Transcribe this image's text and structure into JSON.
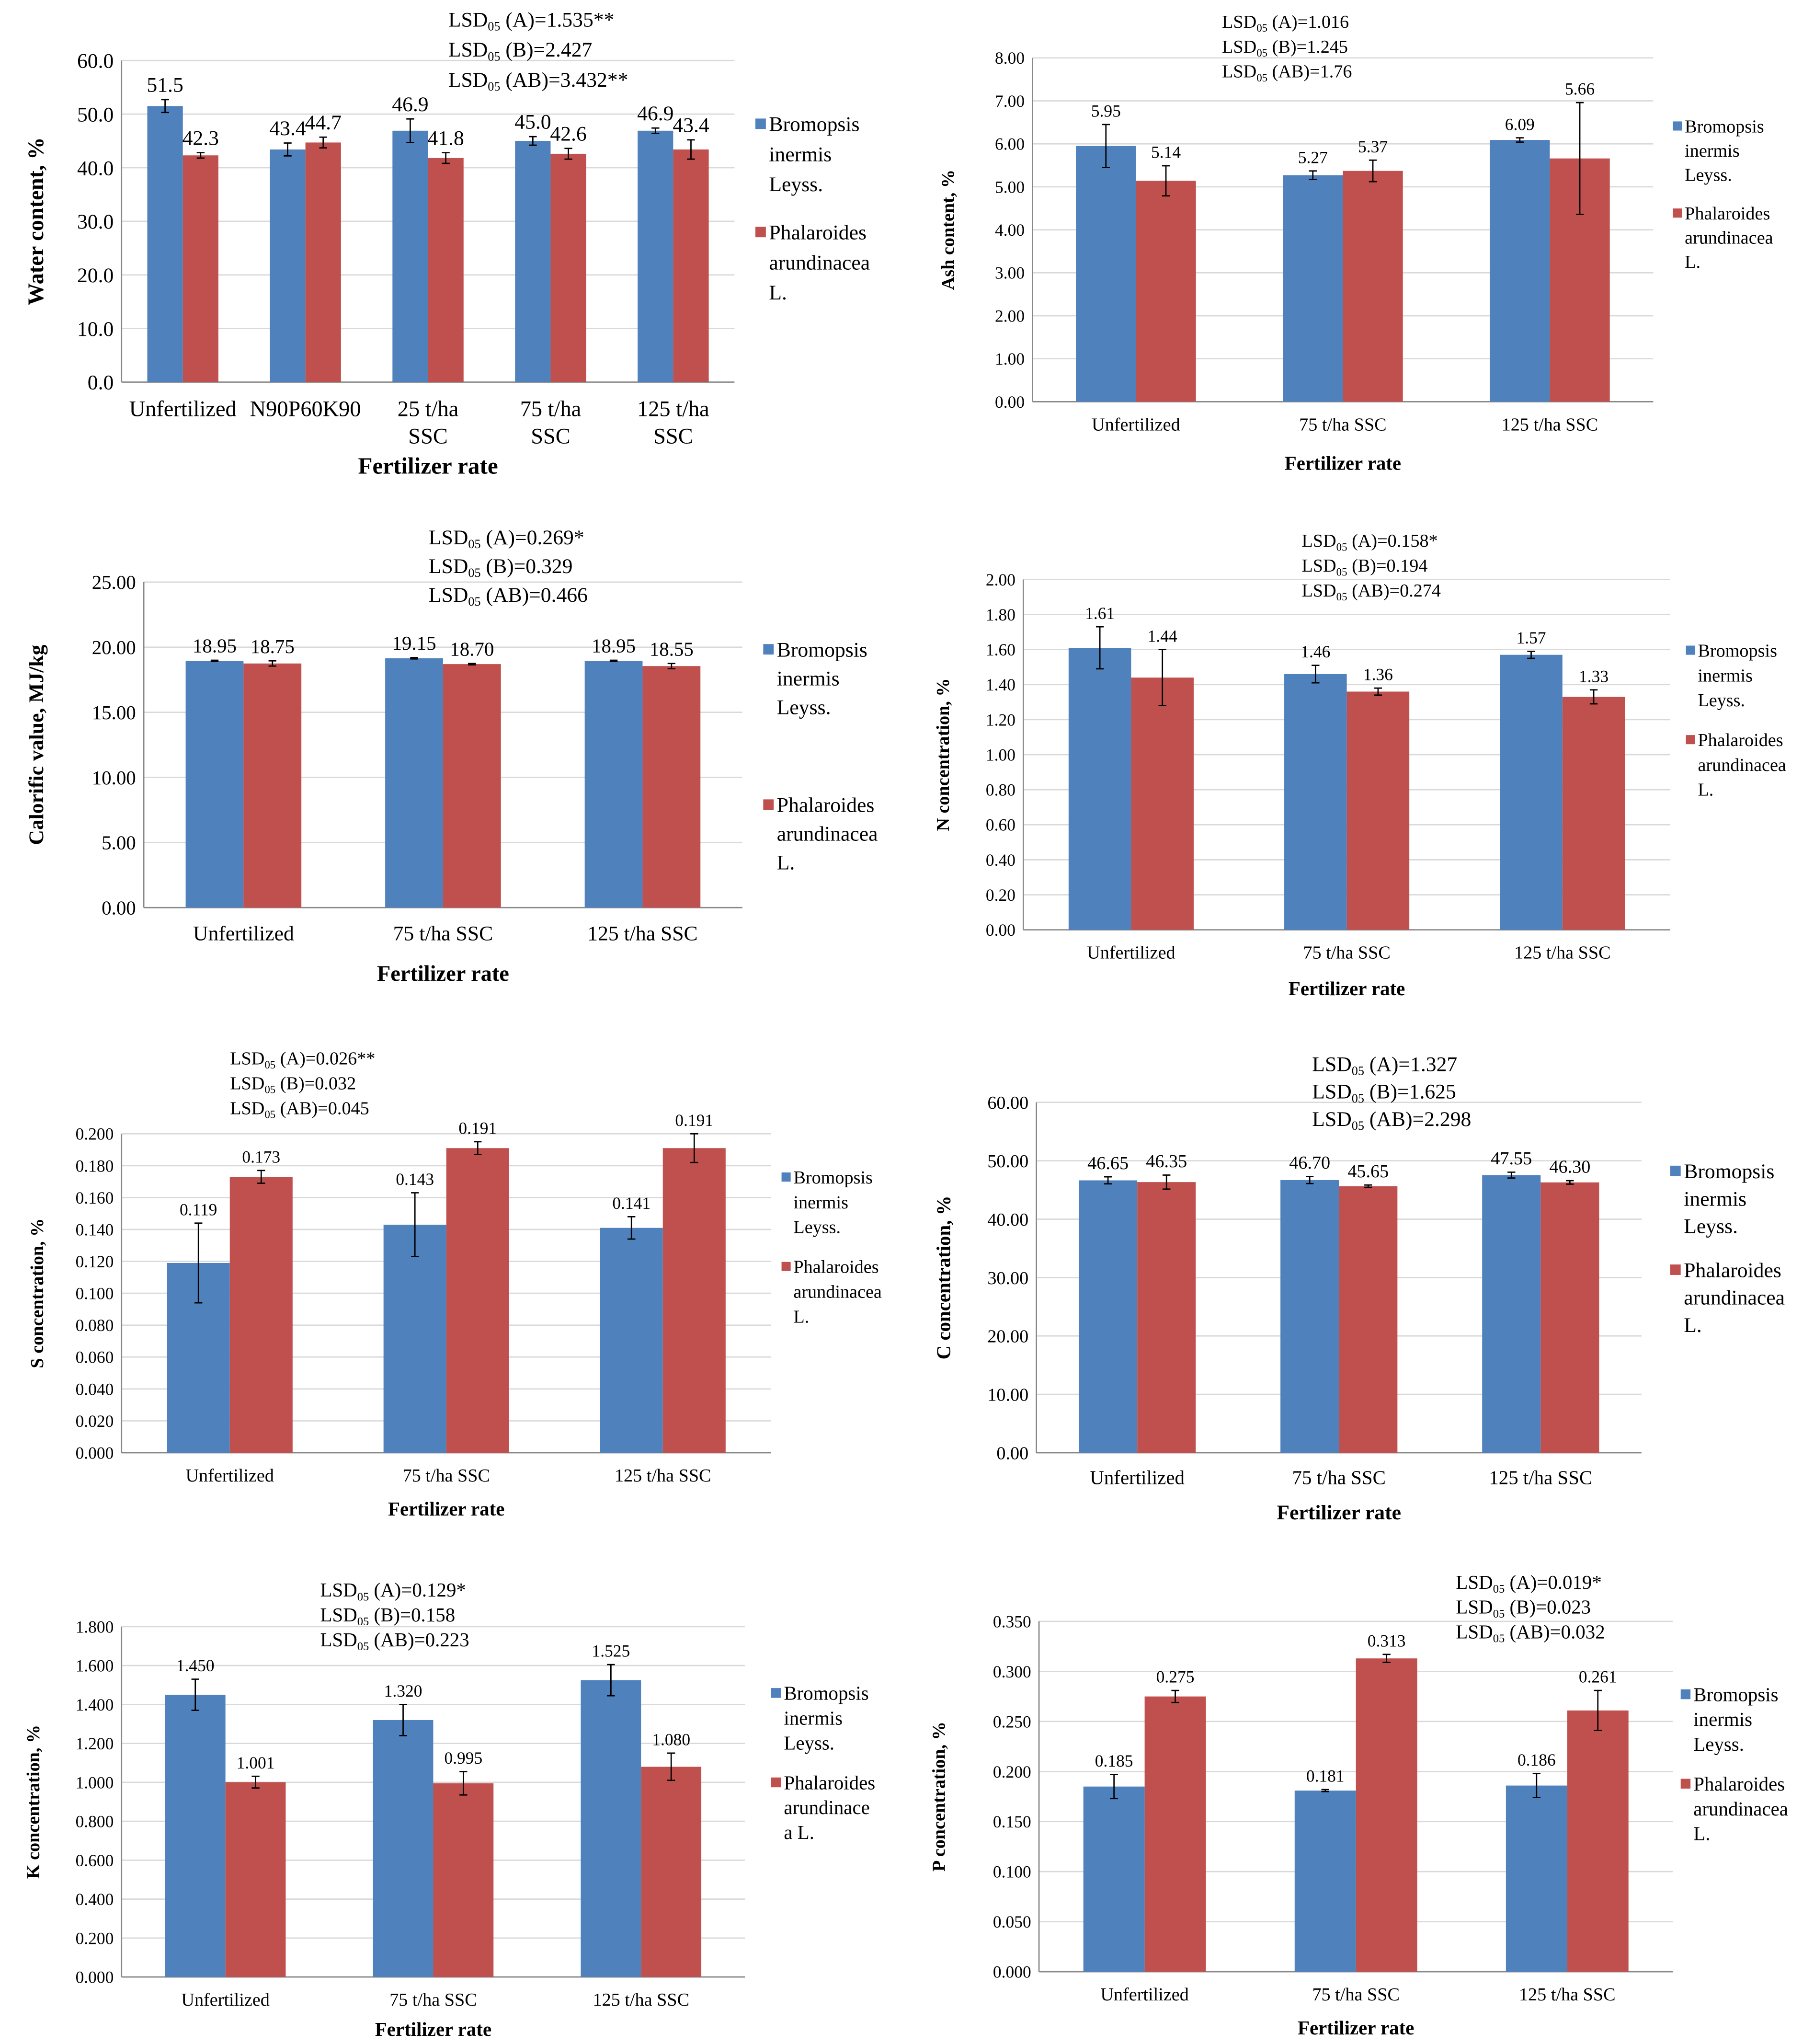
{
  "colors": {
    "series_a": "#4f81bd",
    "series_b": "#c0504d",
    "grid": "#d9d9d9",
    "axis": "#888888"
  },
  "chart_data": [
    {
      "type": "bar",
      "title": "",
      "xlabel": "Fertilizer rate",
      "ylabel": "Water content, %",
      "ylim": [
        0,
        60
      ],
      "ystep": 10,
      "ydecimals": 1,
      "categories": [
        "Unfertilized",
        "N90P60K90",
        "25 t/ha\nSSC",
        "75 t/ha\nSSC",
        "125 t/ha\nSSC"
      ],
      "series": [
        {
          "name": [
            "Bromopsis",
            "inermis",
            "Leyss."
          ],
          "values": [
            51.5,
            43.4,
            46.9,
            45.0,
            46.9
          ],
          "errors": [
            1.2,
            1.2,
            2.2,
            0.8,
            0.5
          ],
          "labels": [
            "51.5",
            "43.4",
            "46.9",
            "45.0",
            "46.9"
          ]
        },
        {
          "name": [
            "Phalaroides",
            "arundinacea",
            "L."
          ],
          "values": [
            42.3,
            44.7,
            41.8,
            42.6,
            43.4
          ],
          "errors": [
            0.5,
            1.0,
            1.0,
            1.0,
            1.8
          ],
          "labels": [
            "42.3",
            "44.7",
            "41.8",
            "42.6",
            "43.4"
          ]
        }
      ],
      "lsd": [
        {
          "pre": "LSD",
          "sub": "05",
          "post": " (A)=1.535**"
        },
        {
          "pre": "LSD",
          "sub": "05",
          "post": " (B)=2.427"
        },
        {
          "pre": "LSD",
          "sub": "05",
          "post": " (AB)=3.432**"
        }
      ],
      "legend": "right"
    },
    {
      "type": "bar",
      "xlabel": "Fertilizer rate",
      "ylabel": "Ash content, %",
      "ylim": [
        0,
        8
      ],
      "ystep": 1,
      "ydecimals": 2,
      "categories": [
        "Unfertilized",
        "75 t/ha SSC",
        "125 t/ha SSC"
      ],
      "series": [
        {
          "name": [
            "Bromopsis",
            "inermis",
            "Leyss."
          ],
          "values": [
            5.95,
            5.27,
            6.09
          ],
          "errors": [
            0.5,
            0.1,
            0.05
          ],
          "labels": [
            "5.95",
            "5.27",
            "6.09"
          ]
        },
        {
          "name": [
            "Phalaroides",
            "arundinacea",
            "L."
          ],
          "values": [
            5.14,
            5.37,
            5.66
          ],
          "errors": [
            0.35,
            0.25,
            1.3
          ],
          "labels": [
            "5.14",
            "5.37",
            "5.66"
          ]
        }
      ],
      "lsd": [
        {
          "pre": "LSD",
          "sub": "05",
          "post": " (A)=1.016"
        },
        {
          "pre": "LSD",
          "sub": "05",
          "post": " (B)=1.245"
        },
        {
          "pre": "LSD",
          "sub": "05",
          "post": " (AB)=1.76"
        }
      ],
      "legend": "right"
    },
    {
      "type": "bar",
      "xlabel": "Fertilizer rate",
      "ylabel": "Calorific value, MJ/kg",
      "ylim": [
        0,
        25
      ],
      "ystep": 5,
      "ydecimals": 2,
      "categories": [
        "Unfertilized",
        "75 t/ha SSC",
        "125 t/ha SSC"
      ],
      "series": [
        {
          "name": [
            "Bromopsis",
            "inermis",
            "Leyss."
          ],
          "values": [
            18.95,
            19.15,
            18.95
          ],
          "errors": [
            0.05,
            0.05,
            0.05
          ],
          "labels": [
            "18.95",
            "19.15",
            "18.95"
          ]
        },
        {
          "name": [
            "Phalaroides",
            "arundinacea",
            "L."
          ],
          "values": [
            18.75,
            18.7,
            18.55
          ],
          "errors": [
            0.2,
            0.05,
            0.2
          ],
          "labels": [
            "18.75",
            "18.70",
            "18.55"
          ]
        }
      ],
      "lsd": [
        {
          "pre": "LSD",
          "sub": "05",
          "post": " (A)=0.269*"
        },
        {
          "pre": "LSD",
          "sub": "05",
          "post": " (B)=0.329"
        },
        {
          "pre": "LSD",
          "sub": "05",
          "post": " (AB)=0.466"
        }
      ],
      "legend": "right"
    },
    {
      "type": "bar",
      "xlabel": "Fertilizer rate",
      "ylabel": "N concentration, %",
      "ylim": [
        0,
        2
      ],
      "ystep": 0.2,
      "ydecimals": 2,
      "categories": [
        "Unfertilized",
        "75 t/ha SSC",
        "125 t/ha SSC"
      ],
      "series": [
        {
          "name": [
            "Bromopsis",
            "inermis",
            "Leyss."
          ],
          "values": [
            1.61,
            1.46,
            1.57
          ],
          "errors": [
            0.12,
            0.05,
            0.02
          ],
          "labels": [
            "1.61",
            "1.46",
            "1.57"
          ]
        },
        {
          "name": [
            "Phalaroides",
            "arundinacea",
            "L."
          ],
          "values": [
            1.44,
            1.36,
            1.33
          ],
          "errors": [
            0.16,
            0.02,
            0.04
          ],
          "labels": [
            "1.44",
            "1.36",
            "1.33"
          ]
        }
      ],
      "lsd": [
        {
          "pre": "LSD",
          "sub": "05",
          "post": " (A)=0.158*"
        },
        {
          "pre": "LSD",
          "sub": "05",
          "post": " (B)=0.194"
        },
        {
          "pre": "LSD",
          "sub": "05",
          "post": " (AB)=0.274"
        }
      ],
      "legend": "right"
    },
    {
      "type": "bar",
      "xlabel": "Fertilizer rate",
      "ylabel": "S concentration, %",
      "ylim": [
        0,
        0.2
      ],
      "ystep": 0.02,
      "ydecimals": 3,
      "categories": [
        "Unfertilized",
        "75 t/ha SSC",
        "125 t/ha SSC"
      ],
      "series": [
        {
          "name": [
            "Bromopsis",
            "inermis",
            "Leyss."
          ],
          "values": [
            0.119,
            0.143,
            0.141
          ],
          "errors": [
            0.025,
            0.02,
            0.007
          ],
          "labels": [
            "0.119",
            "0.143",
            "0.141"
          ]
        },
        {
          "name": [
            "Phalaroides",
            "arundinacea",
            "L."
          ],
          "values": [
            0.173,
            0.191,
            0.191
          ],
          "errors": [
            0.004,
            0.004,
            0.009
          ],
          "labels": [
            "0.173",
            "0.191",
            "0.191"
          ]
        }
      ],
      "lsd": [
        {
          "pre": "LSD",
          "sub": "05",
          "post": " (A)=0.026**"
        },
        {
          "pre": "LSD",
          "sub": "05",
          "post": " (B)=0.032"
        },
        {
          "pre": "LSD",
          "sub": "05",
          "post": " (AB)=0.045"
        }
      ],
      "legend": "right"
    },
    {
      "type": "bar",
      "xlabel": "Fertilizer rate",
      "ylabel": "C concentration, %",
      "ylim": [
        0,
        60
      ],
      "ystep": 10,
      "ydecimals": 2,
      "categories": [
        "Unfertilized",
        "75 t/ha SSC",
        "125 t/ha SSC"
      ],
      "series": [
        {
          "name": [
            "Bromopsis",
            "inermis",
            "Leyss."
          ],
          "values": [
            46.65,
            46.7,
            47.55
          ],
          "errors": [
            0.6,
            0.6,
            0.5
          ],
          "labels": [
            "46.65",
            "46.70",
            "47.55"
          ]
        },
        {
          "name": [
            "Phalaroides",
            "arundinacea",
            "L."
          ],
          "values": [
            46.35,
            45.65,
            46.3
          ],
          "errors": [
            1.2,
            0.2,
            0.3
          ],
          "labels": [
            "46.35",
            "45.65",
            "46.30"
          ]
        }
      ],
      "lsd": [
        {
          "pre": "LSD",
          "sub": "05",
          "post": " (A)=1.327"
        },
        {
          "pre": "LSD",
          "sub": "05",
          "post": " (B)=1.625"
        },
        {
          "pre": "LSD",
          "sub": "05",
          "post": " (AB)=2.298"
        }
      ],
      "legend": "right"
    },
    {
      "type": "bar",
      "xlabel": "Fertilizer rate",
      "ylabel": "K concentration, %",
      "ylim": [
        0,
        1.8
      ],
      "ystep": 0.2,
      "ydecimals": 3,
      "categories": [
        "Unfertilized",
        "75 t/ha SSC",
        "125 t/ha SSC"
      ],
      "series": [
        {
          "name": [
            "Bromopsis",
            "inermis",
            "Leyss."
          ],
          "values": [
            1.45,
            1.32,
            1.525
          ],
          "errors": [
            0.08,
            0.08,
            0.08
          ],
          "labels": [
            "1.450",
            "1.320",
            "1.525"
          ]
        },
        {
          "name": [
            "Phalaroides",
            "arundinace",
            "a L."
          ],
          "values": [
            1.001,
            0.995,
            1.08
          ],
          "errors": [
            0.03,
            0.06,
            0.07
          ],
          "labels": [
            "1.001",
            "0.995",
            "1.080"
          ]
        }
      ],
      "lsd": [
        {
          "pre": "LSD",
          "sub": "05",
          "post": " (A)=0.129*"
        },
        {
          "pre": "LSD",
          "sub": "05",
          "post": " (B)=0.158"
        },
        {
          "pre": "LSD",
          "sub": "05",
          "post": " (AB)=0.223"
        }
      ],
      "legend": "right"
    },
    {
      "type": "bar",
      "xlabel": "Fertilizer rate",
      "ylabel": "P concentration, %",
      "ylim": [
        0,
        0.35
      ],
      "ystep": 0.05,
      "ydecimals": 3,
      "categories": [
        "Unfertilized",
        "75 t/ha SSC",
        "125 t/ha SSC"
      ],
      "series": [
        {
          "name": [
            "Bromopsis",
            "inermis",
            "Leyss."
          ],
          "values": [
            0.185,
            0.181,
            0.186
          ],
          "errors": [
            0.012,
            0.001,
            0.012
          ],
          "labels": [
            "0.185",
            "0.181",
            "0.186"
          ]
        },
        {
          "name": [
            "Phalaroides",
            "arundinacea",
            "L."
          ],
          "values": [
            0.275,
            0.313,
            0.261
          ],
          "errors": [
            0.006,
            0.004,
            0.02
          ],
          "labels": [
            "0.275",
            "0.313",
            "0.261"
          ]
        }
      ],
      "lsd": [
        {
          "pre": "LSD",
          "sub": "05",
          "post": " (A)=0.019*"
        },
        {
          "pre": "LSD",
          "sub": "05",
          "post": " (B)=0.023"
        },
        {
          "pre": "LSD",
          "sub": "05",
          "post": " (AB)=0.032"
        }
      ],
      "legend": "right"
    }
  ]
}
